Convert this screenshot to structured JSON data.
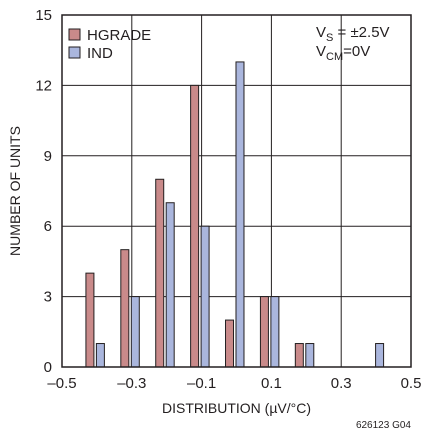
{
  "chart_data": {
    "type": "bar",
    "xlabel": "DISTRIBUTION (µV/°C)",
    "ylabel": "NUMBER OF UNITS",
    "xlim": [
      -0.5,
      0.5
    ],
    "ylim": [
      0,
      15
    ],
    "xticks": [
      -0.5,
      -0.3,
      -0.1,
      0.1,
      0.3,
      0.5
    ],
    "xtick_labels": [
      "–0.5",
      "–0.3",
      "–0.1",
      "0.1",
      "0.3",
      "0.5"
    ],
    "yticks": [
      0,
      3,
      6,
      9,
      12,
      15
    ],
    "ytick_labels": [
      "0",
      "3",
      "6",
      "9",
      "12",
      "15"
    ],
    "grid": true,
    "legend_position": "top-left",
    "series": [
      {
        "name": "HGRADE",
        "color": "#c98a8a",
        "points": [
          {
            "x": -0.42,
            "y": 4
          },
          {
            "x": -0.32,
            "y": 5
          },
          {
            "x": -0.22,
            "y": 8
          },
          {
            "x": -0.12,
            "y": 12
          },
          {
            "x": -0.02,
            "y": 2
          },
          {
            "x": 0.08,
            "y": 3
          },
          {
            "x": 0.18,
            "y": 1
          }
        ]
      },
      {
        "name": "IND",
        "color": "#aab6dd",
        "points": [
          {
            "x": -0.39,
            "y": 1
          },
          {
            "x": -0.29,
            "y": 3
          },
          {
            "x": -0.19,
            "y": 7
          },
          {
            "x": -0.09,
            "y": 6
          },
          {
            "x": 0.01,
            "y": 13
          },
          {
            "x": 0.11,
            "y": 3
          },
          {
            "x": 0.21,
            "y": 1
          },
          {
            "x": 0.41,
            "y": 1
          }
        ]
      }
    ],
    "annotations": {
      "vs_prefix": "V",
      "vs_sub": "S",
      "vs_value": " = ±2.5V",
      "vcm_prefix": "V",
      "vcm_sub": "CM",
      "vcm_value": "=0V"
    },
    "figure_code": "626123 G04"
  }
}
